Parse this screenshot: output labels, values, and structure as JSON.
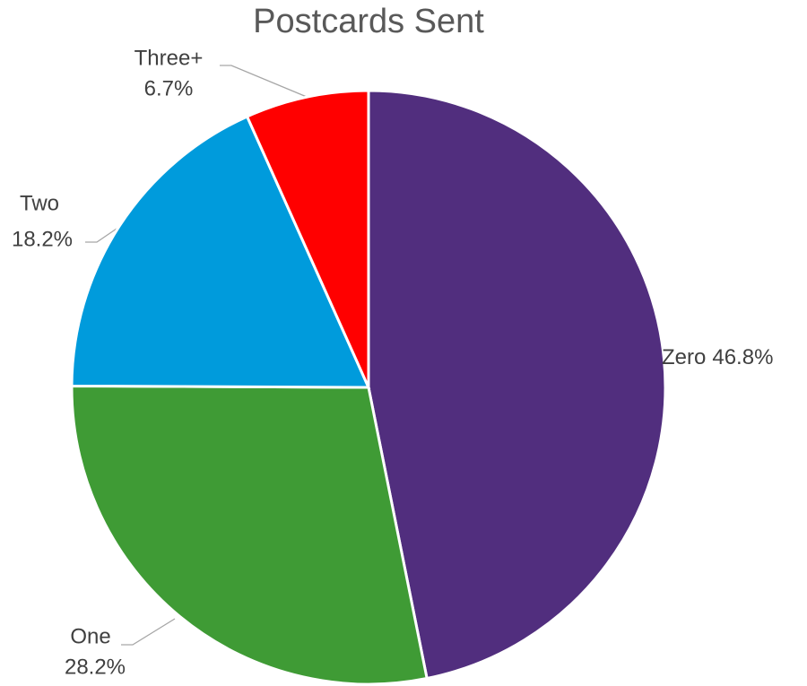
{
  "chart_data": {
    "type": "pie",
    "title": "Postcards Sent",
    "categories": [
      "Zero",
      "One",
      "Two",
      "Three+"
    ],
    "values": [
      46.8,
      28.2,
      18.2,
      6.7
    ],
    "value_labels": [
      "46.8%",
      "28.2%",
      "18.2%",
      "6.7%"
    ],
    "colors": [
      "#512e7e",
      "#3f9b35",
      "#009bdc",
      "#ff0000"
    ]
  }
}
